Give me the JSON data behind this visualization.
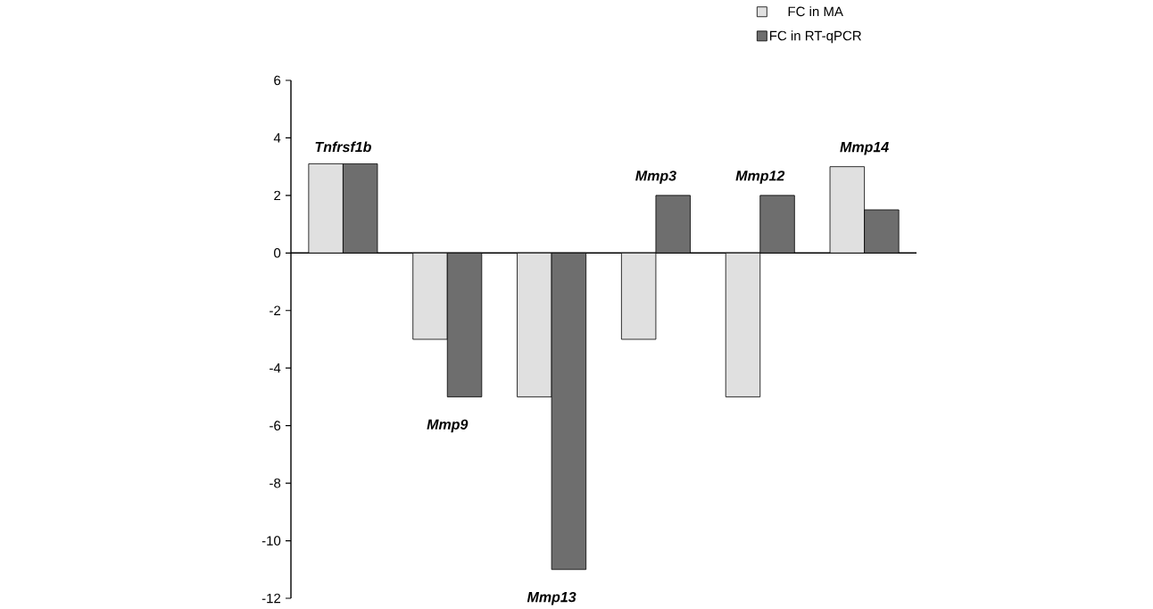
{
  "chart_data": {
    "type": "bar",
    "categories": [
      "Tnfrsf1b",
      "Mmp9",
      "Mmp13",
      "Mmp3",
      "Mmp12",
      "Mmp14"
    ],
    "series": [
      {
        "name": "FC in MA",
        "color": "#e0e0e0",
        "values": [
          3.1,
          -3,
          -5,
          -3,
          -5,
          3
        ]
      },
      {
        "name": "FC in RT-qPCR",
        "color": "#6e6e6e",
        "values": [
          3.1,
          -5,
          -11,
          2,
          2,
          1.5
        ]
      }
    ],
    "ylim": [
      -12,
      6
    ],
    "yticks": [
      -12,
      -10,
      -8,
      -6,
      -4,
      -2,
      0,
      2,
      4,
      6
    ],
    "legend": "top right"
  }
}
